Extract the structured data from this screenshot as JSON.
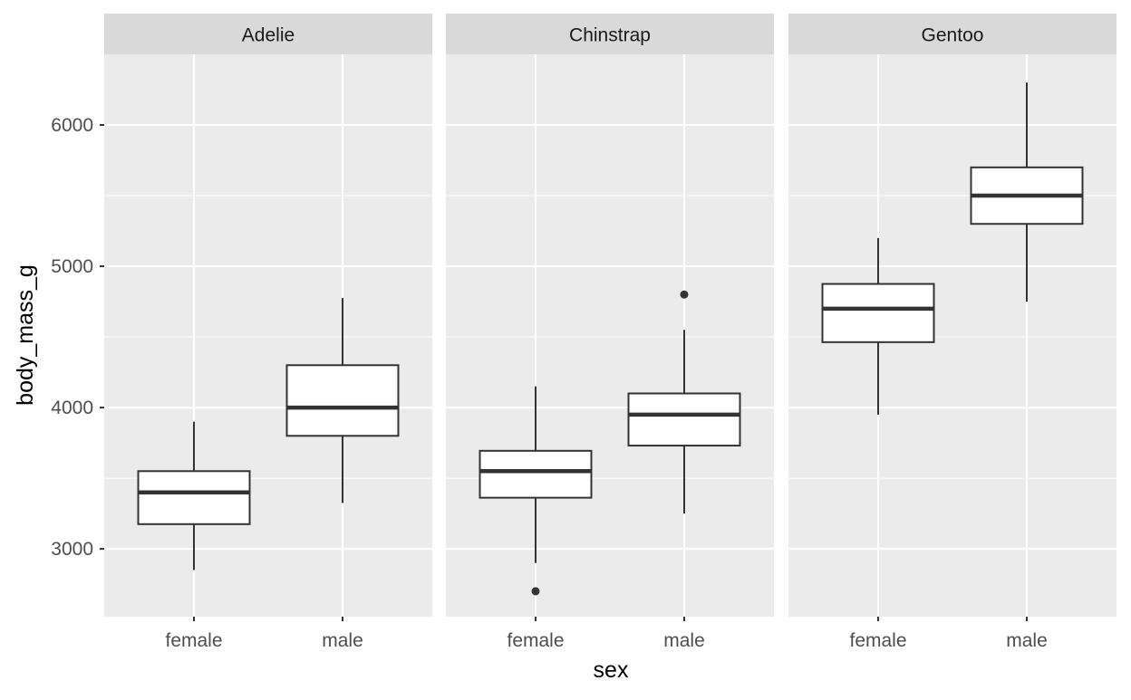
{
  "chart_data": {
    "type": "boxplot",
    "facet_by": "species",
    "xlabel": "sex",
    "ylabel": "body_mass_g",
    "ylim": [
      2520,
      6500
    ],
    "y_ticks": [
      3000,
      4000,
      5000,
      6000
    ],
    "y_tick_labels": [
      "3000",
      "4000",
      "5000",
      "6000"
    ],
    "categories": [
      "female",
      "male"
    ],
    "grid": true,
    "panel_background": "#EBEBEB",
    "strip_background": "#D9D9D9",
    "grid_color": "#FFFFFF",
    "box_fill": "#FFFFFF",
    "line_color": "#333333",
    "panels": [
      {
        "title": "Adelie",
        "boxes": [
          {
            "category": "female",
            "whisker_low": 2850,
            "q1": 3175,
            "median": 3400,
            "q3": 3550,
            "whisker_high": 3900,
            "outliers": []
          },
          {
            "category": "male",
            "whisker_low": 3325,
            "q1": 3800,
            "median": 4000,
            "q3": 4300,
            "whisker_high": 4775,
            "outliers": []
          }
        ]
      },
      {
        "title": "Chinstrap",
        "boxes": [
          {
            "category": "female",
            "whisker_low": 2900,
            "q1": 3362,
            "median": 3550,
            "q3": 3694,
            "whisker_high": 4150,
            "outliers": [
              2700
            ]
          },
          {
            "category": "male",
            "whisker_low": 3250,
            "q1": 3731,
            "median": 3950,
            "q3": 4100,
            "whisker_high": 4550,
            "outliers": [
              4800
            ]
          }
        ]
      },
      {
        "title": "Gentoo",
        "boxes": [
          {
            "category": "female",
            "whisker_low": 3950,
            "q1": 4463,
            "median": 4700,
            "q3": 4875,
            "whisker_high": 5200,
            "outliers": []
          },
          {
            "category": "male",
            "whisker_low": 4750,
            "q1": 5300,
            "median": 5500,
            "q3": 5700,
            "whisker_high": 6300,
            "outliers": []
          }
        ]
      }
    ]
  }
}
